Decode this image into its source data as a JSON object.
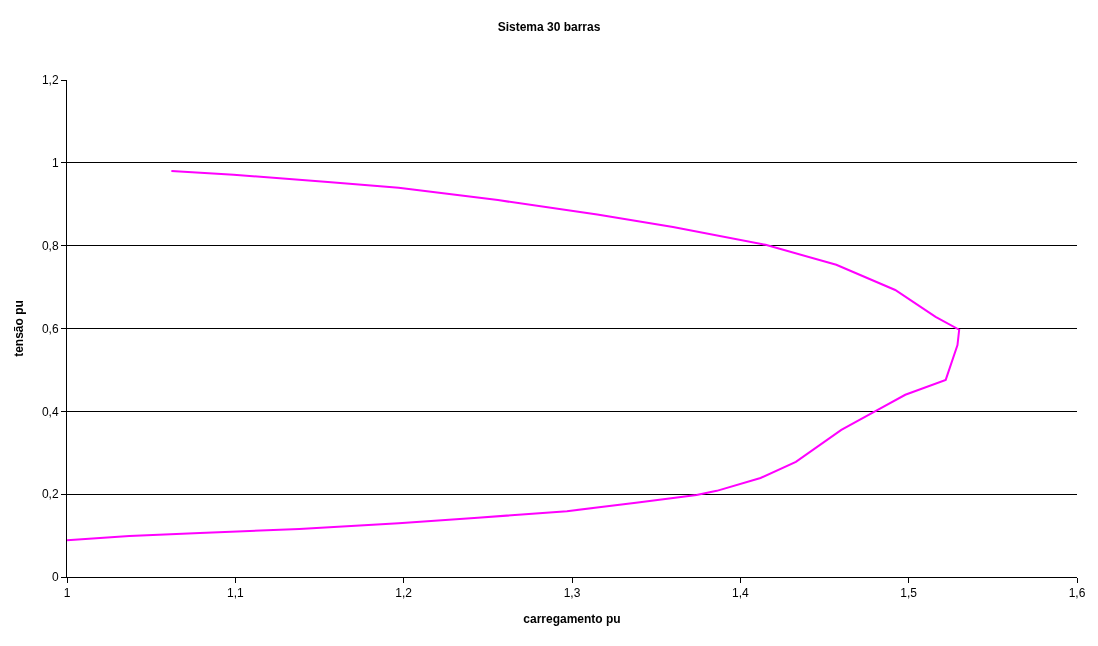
{
  "chart_data": {
    "type": "line",
    "title": "Sistema 30 barras",
    "xlabel": "carregamento pu",
    "ylabel": "tensão pu",
    "x": [
      1.062,
      1.099,
      1.155,
      1.197,
      1.256,
      1.315,
      1.36,
      1.415,
      1.457,
      1.492,
      1.516,
      1.53,
      1.529,
      1.522,
      1.498,
      1.48,
      1.46,
      1.433,
      1.412,
      1.386,
      1.374,
      1.338,
      1.297,
      1.244,
      1.197,
      1.138,
      1.079,
      1.037,
      1.0
    ],
    "series": [
      {
        "color": "#ff00ff",
        "values": [
          0.98,
          0.971,
          0.954,
          0.94,
          0.91,
          0.875,
          0.845,
          0.802,
          0.754,
          0.693,
          0.628,
          0.597,
          0.56,
          0.476,
          0.44,
          0.4,
          0.355,
          0.278,
          0.239,
          0.208,
          0.198,
          0.179,
          0.159,
          0.143,
          0.13,
          0.116,
          0.106,
          0.099,
          0.089
        ]
      }
    ],
    "xlim": [
      1,
      1.6
    ],
    "xticks": [
      {
        "value": 1,
        "label": "1"
      },
      {
        "value": 1.1,
        "label": "1,1"
      },
      {
        "value": 1.2,
        "label": "1,2"
      },
      {
        "value": 1.3,
        "label": "1,3"
      },
      {
        "value": 1.4,
        "label": "1,4"
      },
      {
        "value": 1.5,
        "label": "1,5"
      },
      {
        "value": 1.6,
        "label": "1,6"
      }
    ],
    "ylim": [
      0,
      1.2
    ],
    "yticks": [
      0,
      {
        "value": 0.2,
        "label": "0,2"
      },
      {
        "value": 0.4,
        "label": "0,4"
      },
      {
        "value": 0.6,
        "label": "0,6"
      },
      {
        "value": 0.8,
        "label": "0,8"
      },
      1,
      {
        "value": 1.2,
        "label": "1,2"
      }
    ],
    "grid": "y",
    "legend": false,
    "marker": "none",
    "line_style": "solid"
  }
}
